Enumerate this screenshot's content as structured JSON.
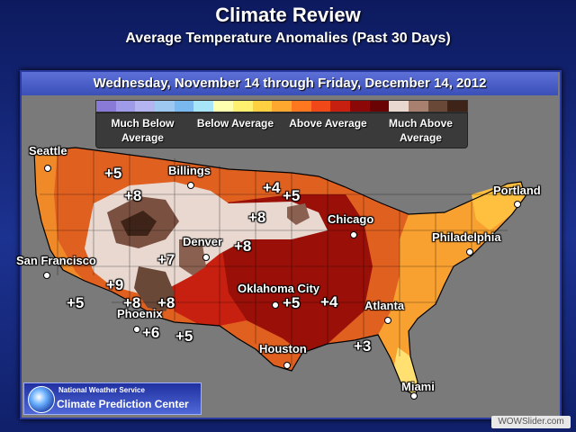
{
  "header": {
    "title": "Climate Review",
    "subtitle": "Average Temperature Anomalies (Past 30 Days)"
  },
  "date_range": "Wednesday, November 14 through Friday, December 14, 2012",
  "legend": {
    "colors": [
      "#8a7ad8",
      "#a09be8",
      "#b4b4f0",
      "#9ec8f0",
      "#7ab8f0",
      "#a8e4f8",
      "#ffffb0",
      "#fff070",
      "#ffd040",
      "#ffa830",
      "#ff7820",
      "#f04818",
      "#c82010",
      "#8c0808",
      "#6a0404",
      "#e8d8d0",
      "#a88070",
      "#6a4838",
      "#3e2418"
    ],
    "labels": [
      "Much Below Average",
      "Below Average",
      "Above Average",
      "Much Above Average"
    ]
  },
  "cities": [
    {
      "name": "Seattle"
    },
    {
      "name": "Billings"
    },
    {
      "name": "Portland"
    },
    {
      "name": "Chicago"
    },
    {
      "name": "San Francisco"
    },
    {
      "name": "Denver"
    },
    {
      "name": "Philadelphia"
    },
    {
      "name": "Oklahoma City"
    },
    {
      "name": "Atlanta"
    },
    {
      "name": "Phoenix"
    },
    {
      "name": "Houston"
    },
    {
      "name": "Miami"
    }
  ],
  "anomalies": [
    "+5",
    "+8",
    "+4",
    "+5",
    "+8",
    "+8",
    "+7",
    "+9",
    "+5",
    "+8",
    "+8",
    "+6",
    "+5",
    "+5",
    "+4",
    "+3"
  ],
  "footer": {
    "agency": "National Weather Service",
    "center": "Climate Prediction Center",
    "watermark": "WOWSlider.com"
  }
}
